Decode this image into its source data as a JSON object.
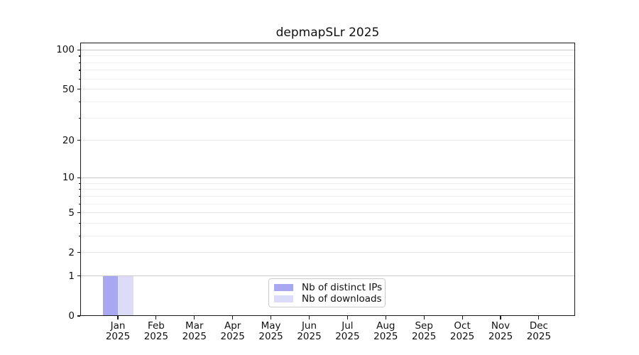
{
  "chart_data": {
    "type": "bar",
    "title": "depmapSLr 2025",
    "categories": [
      "Jan",
      "Feb",
      "Mar",
      "Apr",
      "May",
      "Jun",
      "Jul",
      "Aug",
      "Sep",
      "Oct",
      "Nov",
      "Dec"
    ],
    "category_year": "2025",
    "series": [
      {
        "name": "Nb of distinct IPs",
        "color": "#a8a8f2",
        "values": [
          1,
          0,
          0,
          0,
          0,
          0,
          0,
          0,
          0,
          0,
          0,
          0
        ]
      },
      {
        "name": "Nb of downloads",
        "color": "#dcdcf8",
        "values": [
          1,
          0,
          0,
          0,
          0,
          0,
          0,
          0,
          0,
          0,
          0,
          0
        ]
      }
    ],
    "xlabel": "",
    "ylabel": "",
    "y_scale": "log10(1+y)",
    "y_ticks": [
      0,
      1,
      2,
      5,
      10,
      20,
      50,
      100
    ],
    "y_minor_ticks": [
      3,
      4,
      6,
      7,
      8,
      9,
      30,
      40,
      60,
      70,
      80,
      90
    ],
    "ylim": [
      0,
      113
    ],
    "grid": "horizontal",
    "legend_position": "bottom-center",
    "colors": {
      "decade_gridline": "#c9c9c9",
      "major_gridline": "#e7e7e7",
      "minor_gridline": "#f0f0f0",
      "spine": "#1a1a1a",
      "text": "#111111"
    }
  }
}
